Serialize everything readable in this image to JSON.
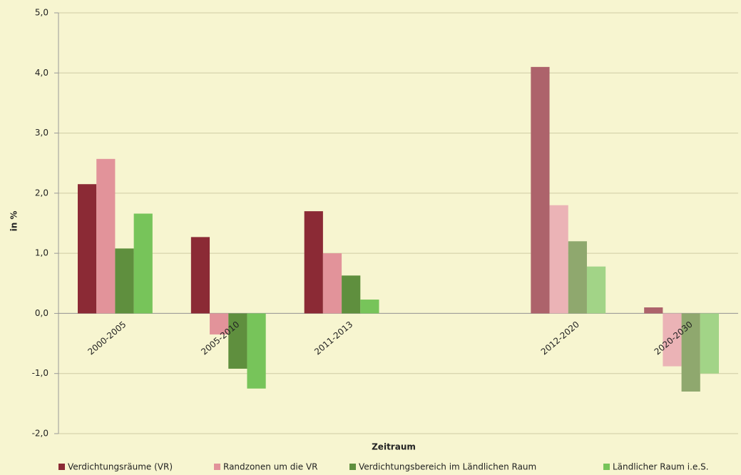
{
  "chart_data": {
    "type": "bar",
    "categories": [
      "2000-2005",
      "2005-2010",
      "2011-2013",
      null,
      "2012-2020",
      "2020-2030"
    ],
    "series": [
      {
        "name": "Verdichtungsräume (VR)",
        "color": "#8b2a35",
        "colors": [
          "#8b2a35",
          "#8b2a35",
          "#8b2a35",
          null,
          "#ad636b",
          "#ad636b"
        ],
        "values": [
          2.15,
          1.27,
          1.7,
          null,
          4.1,
          0.1
        ]
      },
      {
        "name": "Randzonen um die VR",
        "color": "#e2939a",
        "colors": [
          "#e2939a",
          "#e2939a",
          "#e2939a",
          null,
          "#ebb3b6",
          "#ebb3b6"
        ],
        "values": [
          2.57,
          -0.35,
          1.0,
          null,
          1.8,
          -0.88
        ]
      },
      {
        "name": "Verdichtungsbereich im Ländlichen Raum",
        "color": "#5f8f3e",
        "colors": [
          "#5f8f3e",
          "#5f8f3e",
          "#5f8f3e",
          null,
          "#8fa86e",
          "#8fa86e"
        ],
        "values": [
          1.08,
          -0.92,
          0.63,
          null,
          1.2,
          -1.3
        ]
      },
      {
        "name": "Ländlicher Raum i.e.S.",
        "color": "#77c45a",
        "colors": [
          "#77c45a",
          "#77c45a",
          "#77c45a",
          null,
          "#a2d487",
          "#a2d487"
        ],
        "values": [
          1.66,
          -1.25,
          0.23,
          null,
          0.78,
          -1.0
        ]
      }
    ],
    "ylabel": "in %",
    "xlabel": "Zeitraum",
    "ylim": [
      -2,
      5
    ],
    "yticks": [
      {
        "value": -2,
        "label": "-2,0"
      },
      {
        "value": -1,
        "label": "-1,0"
      },
      {
        "value": 0,
        "label": "0,0"
      },
      {
        "value": 1,
        "label": "1,0"
      },
      {
        "value": 2,
        "label": "2,0"
      },
      {
        "value": 3,
        "label": "3,0"
      },
      {
        "value": 4,
        "label": "4,0"
      },
      {
        "value": 5,
        "label": "5,0"
      }
    ],
    "grid": true,
    "legend": "bottom"
  }
}
